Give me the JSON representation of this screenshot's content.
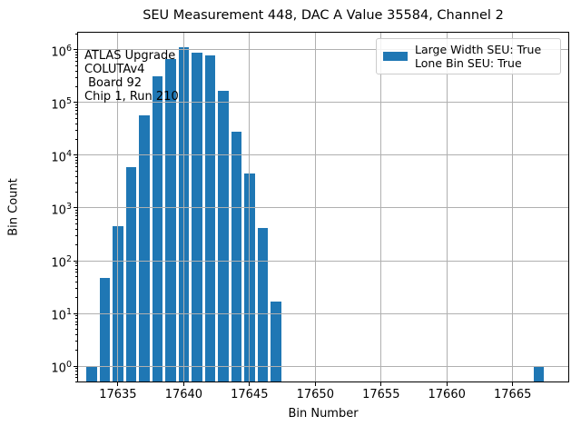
{
  "chart_data": {
    "type": "bar",
    "title": "SEU Measurement 448, DAC A Value 35584, Channel 2",
    "xlabel": "Bin Number",
    "ylabel": "Bin Count",
    "yscale": "log",
    "bins": [
      17633,
      17634,
      17635,
      17636,
      17637,
      17638,
      17639,
      17640,
      17641,
      17642,
      17643,
      17644,
      17645,
      17646,
      17647,
      17667
    ],
    "counts": [
      1,
      47,
      450,
      6000,
      57000,
      320000,
      670000,
      1140000,
      890000,
      780000,
      170000,
      28000,
      4600,
      410,
      17,
      1
    ],
    "bar_color": "#1f77b4",
    "bar_width_fraction": 0.8,
    "xticks": [
      17635,
      17640,
      17645,
      17650,
      17655,
      17660,
      17665
    ],
    "ytick_base": "10",
    "ytick_exponents": [
      0,
      1,
      2,
      3,
      4,
      5,
      6
    ],
    "xlim": [
      17631.9,
      17669.3
    ],
    "ylim": [
      0.49,
      2200000
    ],
    "grid": "major",
    "grid_color": "#b0b0b0",
    "legend_position": "upper right",
    "legend_label_lines": [
      "Large Width SEU: True",
      "Lone Bin SEU: True"
    ],
    "annotation_lines": [
      "ATLAS Upgrade",
      "COLUTAv4",
      " Board 92",
      "Chip 1, Run 210"
    ]
  }
}
